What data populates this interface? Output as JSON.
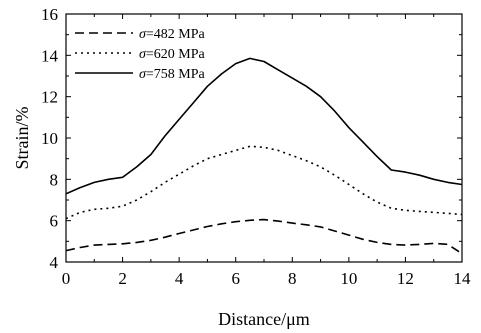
{
  "chart_data": {
    "type": "line",
    "xlabel": "Distance/μm",
    "ylabel": "Strain/%",
    "xlim": [
      0,
      14
    ],
    "ylim": [
      4,
      16
    ],
    "xticks": [
      0,
      2,
      4,
      6,
      8,
      10,
      12,
      14
    ],
    "yticks": [
      4,
      6,
      8,
      10,
      12,
      14,
      16
    ],
    "grid": false,
    "legend_position": "top-left",
    "series": [
      {
        "name": "σ=482 MPa",
        "dash": "dashed",
        "color": "#000000",
        "x": [
          0,
          0.5,
          1,
          1.5,
          2,
          2.5,
          3,
          3.5,
          4,
          4.5,
          5,
          5.5,
          6,
          6.5,
          7,
          7.5,
          8,
          8.5,
          9,
          9.5,
          10,
          10.5,
          11,
          11.5,
          12,
          12.5,
          13,
          13.5,
          14
        ],
        "y": [
          4.55,
          4.7,
          4.82,
          4.85,
          4.88,
          4.95,
          5.05,
          5.2,
          5.38,
          5.55,
          5.72,
          5.85,
          5.95,
          6.02,
          6.05,
          5.98,
          5.88,
          5.8,
          5.7,
          5.5,
          5.3,
          5.1,
          4.95,
          4.85,
          4.82,
          4.85,
          4.9,
          4.85,
          4.4
        ]
      },
      {
        "name": "σ=620 MPa",
        "dash": "dotted",
        "color": "#000000",
        "x": [
          0,
          0.5,
          1,
          1.5,
          2,
          2.5,
          3,
          3.5,
          4,
          4.5,
          5,
          5.5,
          6,
          6.5,
          7,
          7.5,
          8,
          8.5,
          9,
          9.5,
          10,
          10.5,
          11,
          11.5,
          12,
          12.5,
          13,
          13.5,
          14
        ],
        "y": [
          6.1,
          6.4,
          6.55,
          6.6,
          6.7,
          7.0,
          7.4,
          7.85,
          8.25,
          8.65,
          9.0,
          9.2,
          9.4,
          9.6,
          9.55,
          9.4,
          9.15,
          8.9,
          8.6,
          8.2,
          7.75,
          7.3,
          6.9,
          6.6,
          6.5,
          6.45,
          6.4,
          6.35,
          6.3
        ]
      },
      {
        "name": "σ=758 MPa",
        "dash": "solid",
        "color": "#000000",
        "x": [
          0,
          0.5,
          1,
          1.5,
          2,
          2.5,
          3,
          3.5,
          4,
          4.5,
          5,
          5.5,
          6,
          6.5,
          7,
          7.5,
          8,
          8.5,
          9,
          9.5,
          10,
          10.5,
          11,
          11.5,
          12,
          12.5,
          13,
          13.5,
          14
        ],
        "y": [
          7.3,
          7.6,
          7.85,
          8.0,
          8.1,
          8.6,
          9.2,
          10.1,
          10.9,
          11.7,
          12.5,
          13.1,
          13.6,
          13.85,
          13.7,
          13.3,
          12.9,
          12.5,
          12.0,
          11.3,
          10.5,
          9.8,
          9.1,
          8.45,
          8.35,
          8.2,
          8.0,
          7.85,
          7.75
        ]
      }
    ]
  }
}
